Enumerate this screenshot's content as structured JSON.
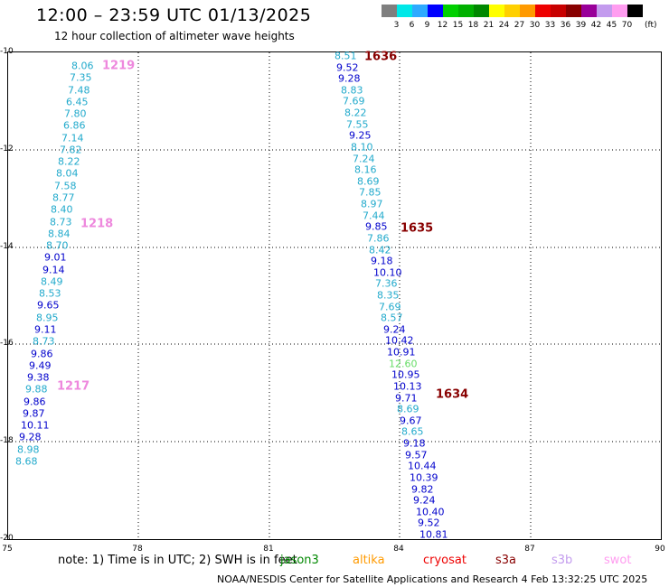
{
  "title": "12:00 – 23:59 UTC 01/13/2025",
  "subtitle": "12 hour collection of altimeter wave heights",
  "colorbar": {
    "unit": "(ft)",
    "labels": [
      "3",
      "6",
      "9",
      "12",
      "15",
      "18",
      "21",
      "24",
      "27",
      "30",
      "33",
      "36",
      "39",
      "42",
      "45",
      "70"
    ],
    "colors": [
      "#7f7f7f",
      "#00e8e8",
      "#2eaaff",
      "#0000ff",
      "#00d000",
      "#00b000",
      "#008800",
      "#ffff00",
      "#ffd000",
      "#ff9a00",
      "#ee0000",
      "#c80000",
      "#880000",
      "#990099",
      "#c39bee",
      "#ff9df0",
      "#000000"
    ]
  },
  "axes": {
    "x_ticks": [
      "75",
      "78",
      "81",
      "84",
      "87",
      "90"
    ],
    "y_ticks": [
      "-10",
      "-12",
      "-14",
      "-16",
      "-18",
      "-20"
    ]
  },
  "passes": [
    {
      "label": "1219",
      "color": "#ee88dd"
    },
    {
      "label": "1218",
      "color": "#ee88dd"
    },
    {
      "label": "1217",
      "color": "#ee88dd"
    },
    {
      "label": "1636",
      "color": "#880000"
    },
    {
      "label": "1635",
      "color": "#880000"
    },
    {
      "label": "1634",
      "color": "#880000"
    }
  ],
  "tracks": [
    {
      "name": "west",
      "labels": [
        "8.06",
        "7.35",
        "7.48",
        "6.45",
        "7.80",
        "6.86",
        "7.14",
        "7.82",
        "8.22",
        "8.04",
        "7.58",
        "8.77",
        "8.40",
        "8.73",
        "8.84",
        "8.70",
        "9.01",
        "9.14",
        "8.49",
        "8.53",
        "9.65",
        "8.95",
        "9.11",
        "8.73",
        "9.86",
        "9.49",
        "9.38",
        "9.88",
        "9.86",
        "9.87",
        "10.11",
        "9.28",
        "8.98",
        "8.68"
      ],
      "colors": [
        "c",
        "c",
        "c",
        "c",
        "c",
        "c",
        "c",
        "c",
        "c",
        "c",
        "c",
        "c",
        "c",
        "c",
        "c",
        "c",
        "b",
        "b",
        "c",
        "c",
        "b",
        "c",
        "b",
        "c",
        "b",
        "b",
        "b",
        "c",
        "b",
        "b",
        "b",
        "b",
        "c",
        "c"
      ]
    },
    {
      "name": "east",
      "labels": [
        "8.51",
        "9.52",
        "9.28",
        "8.83",
        "7.69",
        "8.22",
        "7.55",
        "9.25",
        "8.10",
        "7.24",
        "8.16",
        "8.69",
        "7.85",
        "8.97",
        "7.44",
        "9.85",
        "7.86",
        "8.42",
        "9.18",
        "10.10",
        "7.36",
        "8.35",
        "7.69",
        "8.57",
        "9.24",
        "10.42",
        "10.91",
        "12.60",
        "10.95",
        "10.13",
        "9.71",
        "8.69",
        "9.67",
        "8.65",
        "9.18",
        "9.57",
        "10.44",
        "10.39",
        "9.82",
        "9.24",
        "10.40",
        "9.52",
        "10.81"
      ],
      "colors": [
        "c",
        "b",
        "b",
        "c",
        "c",
        "c",
        "c",
        "b",
        "c",
        "c",
        "c",
        "c",
        "c",
        "c",
        "c",
        "b",
        "c",
        "c",
        "b",
        "b",
        "c",
        "c",
        "c",
        "c",
        "b",
        "b",
        "b",
        "g",
        "b",
        "b",
        "b",
        "c",
        "b",
        "c",
        "b",
        "b",
        "b",
        "b",
        "b",
        "b",
        "b",
        "b",
        "b"
      ]
    }
  ],
  "note": "note:  1) Time is in UTC;  2) SWH is in feet",
  "satellites": [
    {
      "name": "jason3",
      "color": "#008800"
    },
    {
      "name": "altika",
      "color": "#ff9a00"
    },
    {
      "name": "cryosat",
      "color": "#ee0000"
    },
    {
      "name": "s3a",
      "color": "#880000"
    },
    {
      "name": "s3b",
      "color": "#c39bee"
    },
    {
      "name": "swot",
      "color": "#ff9df0"
    }
  ],
  "footer": "NOAA/NESDIS Center for Satellite Applications and Research     4 Feb 13:32:25 UTC 2025",
  "palette": {
    "c": "#22aacc",
    "b": "#0000cc",
    "g": "#66dd66"
  }
}
